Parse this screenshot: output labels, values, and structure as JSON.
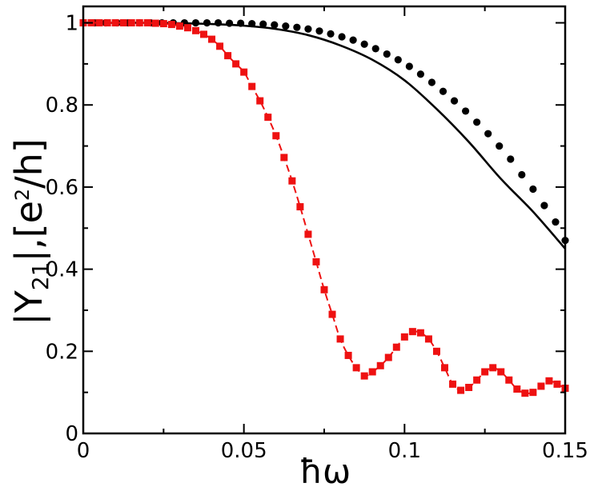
{
  "chart_data": {
    "type": "line",
    "xlabel": "ħω",
    "ylabel_parts": [
      "|Υ",
      "21",
      "|,[e",
      "2",
      "/h]"
    ],
    "xlim": [
      0,
      0.15
    ],
    "ylim": [
      0,
      1.04
    ],
    "x_ticks": [
      0,
      0.05,
      0.1,
      0.15
    ],
    "x_tick_labels": [
      "0",
      "0.05",
      "0.1",
      "0.15"
    ],
    "y_ticks": [
      0,
      0.2,
      0.4,
      0.6,
      0.8,
      1
    ],
    "y_tick_labels": [
      "0",
      "0.2",
      "0.4",
      "0.6",
      "0.8",
      "1"
    ],
    "grid": false,
    "legend": "none",
    "series": [
      {
        "style": "solid-line",
        "color": "#000000",
        "x": [
          0,
          0.01,
          0.02,
          0.03,
          0.04,
          0.05,
          0.06,
          0.07,
          0.08,
          0.09,
          0.1,
          0.11,
          0.12,
          0.13,
          0.14,
          0.15
        ],
        "y": [
          1.0,
          1.0,
          1.0,
          0.999,
          0.997,
          0.993,
          0.985,
          0.97,
          0.945,
          0.91,
          0.86,
          0.79,
          0.71,
          0.62,
          0.54,
          0.45
        ]
      },
      {
        "style": "circle-markers",
        "color": "#000000",
        "x": [
          0,
          0.0035,
          0.007,
          0.0105,
          0.014,
          0.0175,
          0.021,
          0.0245,
          0.028,
          0.0315,
          0.035,
          0.0385,
          0.042,
          0.0455,
          0.049,
          0.0525,
          0.056,
          0.0595,
          0.063,
          0.0665,
          0.07,
          0.0735,
          0.077,
          0.0805,
          0.084,
          0.0875,
          0.091,
          0.0945,
          0.098,
          0.1015,
          0.105,
          0.1085,
          0.112,
          0.1155,
          0.119,
          0.1225,
          0.126,
          0.1295,
          0.133,
          0.1365,
          0.14,
          0.1435,
          0.147,
          0.15
        ],
        "y": [
          1.0,
          1.0,
          1.0,
          1.0,
          1.0,
          1.0,
          1.0,
          1.0,
          1.0,
          1.0,
          1.0,
          1.0,
          1.0,
          0.999,
          0.999,
          0.998,
          0.997,
          0.995,
          0.992,
          0.989,
          0.985,
          0.98,
          0.973,
          0.966,
          0.958,
          0.948,
          0.937,
          0.924,
          0.91,
          0.894,
          0.875,
          0.855,
          0.833,
          0.81,
          0.785,
          0.758,
          0.73,
          0.7,
          0.668,
          0.63,
          0.595,
          0.555,
          0.515,
          0.47
        ]
      },
      {
        "style": "dashed-square-markers",
        "color": "#ee1111",
        "x": [
          0,
          0.0025,
          0.005,
          0.0075,
          0.01,
          0.0125,
          0.015,
          0.0175,
          0.02,
          0.0225,
          0.025,
          0.0275,
          0.03,
          0.0325,
          0.035,
          0.0375,
          0.04,
          0.0425,
          0.045,
          0.0475,
          0.05,
          0.0525,
          0.055,
          0.0575,
          0.06,
          0.0625,
          0.065,
          0.0675,
          0.07,
          0.0725,
          0.075,
          0.0775,
          0.08,
          0.0825,
          0.085,
          0.0875,
          0.09,
          0.0925,
          0.095,
          0.0975,
          0.1,
          0.1025,
          0.105,
          0.1075,
          0.11,
          0.1125,
          0.115,
          0.1175,
          0.12,
          0.1225,
          0.125,
          0.1275,
          0.13,
          0.1325,
          0.135,
          0.1375,
          0.14,
          0.1425,
          0.145,
          0.1475,
          0.15
        ],
        "y": [
          1.0,
          1.0,
          1.0,
          1.0,
          1.0,
          1.0,
          1.0,
          1.0,
          1.0,
          0.999,
          0.998,
          0.996,
          0.992,
          0.988,
          0.981,
          0.972,
          0.96,
          0.943,
          0.92,
          0.9,
          0.88,
          0.845,
          0.81,
          0.77,
          0.725,
          0.672,
          0.615,
          0.552,
          0.485,
          0.418,
          0.35,
          0.29,
          0.23,
          0.19,
          0.16,
          0.14,
          0.15,
          0.165,
          0.185,
          0.21,
          0.235,
          0.248,
          0.245,
          0.23,
          0.2,
          0.16,
          0.12,
          0.105,
          0.112,
          0.13,
          0.15,
          0.16,
          0.15,
          0.13,
          0.108,
          0.098,
          0.1,
          0.115,
          0.128,
          0.12,
          0.11
        ]
      }
    ]
  }
}
